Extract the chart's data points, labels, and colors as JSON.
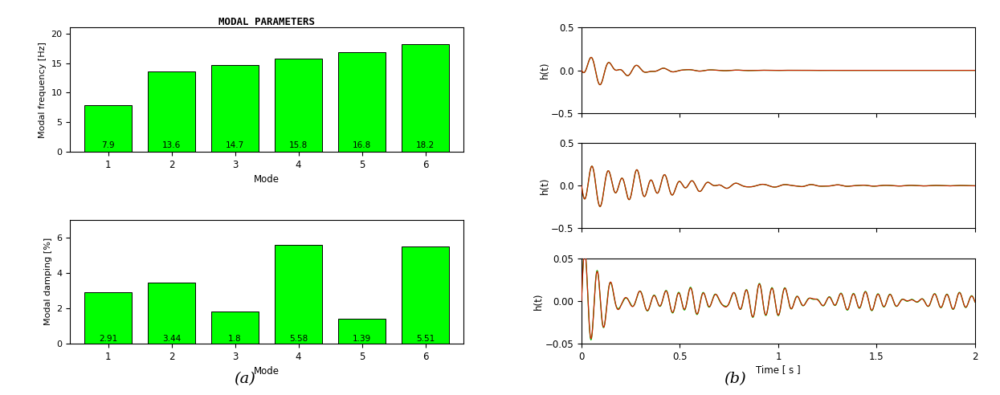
{
  "freq_values": [
    7.9,
    13.6,
    14.7,
    15.8,
    16.8,
    18.2
  ],
  "damp_values": [
    2.91,
    3.44,
    1.8,
    5.58,
    1.39,
    5.51
  ],
  "modes": [
    1,
    2,
    3,
    4,
    5,
    6
  ],
  "bar_color": "#00FF00",
  "bar_edge_color": "#000000",
  "freq_ylim": [
    0,
    21
  ],
  "freq_yticks": [
    0,
    5,
    10,
    15,
    20
  ],
  "damp_ylim": [
    0,
    7
  ],
  "damp_yticks": [
    0,
    2,
    4,
    6
  ],
  "freq_ylabel": "Modal frequency [Hz]",
  "damp_ylabel": "Modal damping [%]",
  "xlabel": "Mode",
  "freq_title": "MODAL PARAMETERS",
  "subplot_a_label": "(a)",
  "subplot_b_label": "(b)",
  "time_xlabel": "Time [ s ]",
  "impulse_ylabel": "h(t)",
  "xlim": [
    0,
    2
  ],
  "xticks": [
    0,
    0.5,
    1,
    1.5,
    2
  ],
  "ir1_ylim": [
    -0.5,
    0.5
  ],
  "ir1_yticks": [
    -0.5,
    0,
    0.5
  ],
  "ir2_ylim": [
    -0.5,
    0.5
  ],
  "ir2_yticks": [
    -0.5,
    0,
    0.5
  ],
  "ir3_ylim": [
    -0.05,
    0.05
  ],
  "ir3_yticks": [
    -0.05,
    0,
    0.05
  ],
  "measured_color": "#00BB00",
  "reconstructed_color": "#CC2200"
}
